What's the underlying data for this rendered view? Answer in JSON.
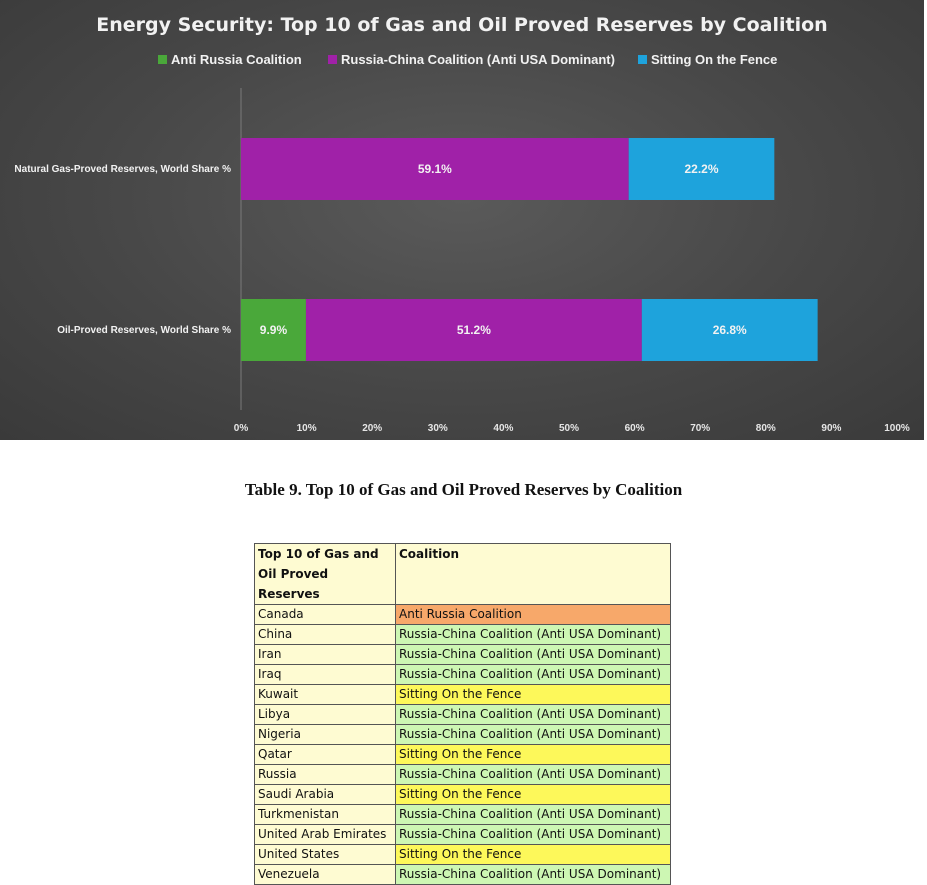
{
  "colors": {
    "Anti Russia Coalition": "#4aa83a",
    "Russia-China Coalition (Anti USA Dominant)": "#a021a8",
    "Sitting On the Fence": "#1ea3dc",
    "table_Anti Russia Coalition": "#f7a86a",
    "table_Russia-China Coalition (Anti USA Dominant)": "#cdf7b3",
    "table_Sitting On the Fence": "#fdf85a"
  },
  "chart_data": {
    "type": "bar",
    "orientation": "horizontal",
    "stacked": true,
    "title": "Energy Security: Top 10 of Gas and Oil Proved Reserves by Coalition",
    "legend_position": "top",
    "categories": [
      "Natural Gas-Proved Reserves, World Share %",
      "Oil-Proved Reserves, World Share %"
    ],
    "series": [
      {
        "name": "Anti Russia Coalition",
        "values": [
          0,
          9.9
        ],
        "labels": [
          "",
          "9.9%"
        ]
      },
      {
        "name": "Russia-China Coalition (Anti USA Dominant)",
        "values": [
          59.1,
          51.2
        ],
        "labels": [
          "59.1%",
          "51.2%"
        ]
      },
      {
        "name": "Sitting On the Fence",
        "values": [
          22.2,
          26.8
        ],
        "labels": [
          "22.2%",
          "26.8%"
        ]
      }
    ],
    "xlim": [
      0,
      100
    ],
    "x_ticks": [
      "0%",
      "10%",
      "20%",
      "30%",
      "40%",
      "50%",
      "60%",
      "70%",
      "80%",
      "90%",
      "100%"
    ],
    "grid": false
  },
  "table": {
    "caption": "Table 9. Top 10 of Gas and Oil Proved Reserves by Coalition",
    "headers": [
      "Top 10 of Gas and Oil Proved Reserves",
      "Coalition"
    ],
    "rows": [
      [
        "Canada",
        "Anti Russia Coalition"
      ],
      [
        "China",
        "Russia-China Coalition (Anti USA Dominant)"
      ],
      [
        "Iran",
        "Russia-China Coalition (Anti USA Dominant)"
      ],
      [
        "Iraq",
        "Russia-China Coalition (Anti USA Dominant)"
      ],
      [
        "Kuwait",
        "Sitting On the Fence"
      ],
      [
        "Libya",
        "Russia-China Coalition (Anti USA Dominant)"
      ],
      [
        "Nigeria",
        "Russia-China Coalition (Anti USA Dominant)"
      ],
      [
        "Qatar",
        "Sitting On the Fence"
      ],
      [
        "Russia",
        "Russia-China Coalition (Anti USA Dominant)"
      ],
      [
        "Saudi Arabia",
        "Sitting On the Fence"
      ],
      [
        "Turkmenistan",
        "Russia-China Coalition (Anti USA Dominant)"
      ],
      [
        "United Arab Emirates",
        "Russia-China Coalition (Anti USA Dominant)"
      ],
      [
        "United States",
        "Sitting On the Fence"
      ],
      [
        "Venezuela",
        "Russia-China Coalition (Anti USA Dominant)"
      ]
    ]
  }
}
